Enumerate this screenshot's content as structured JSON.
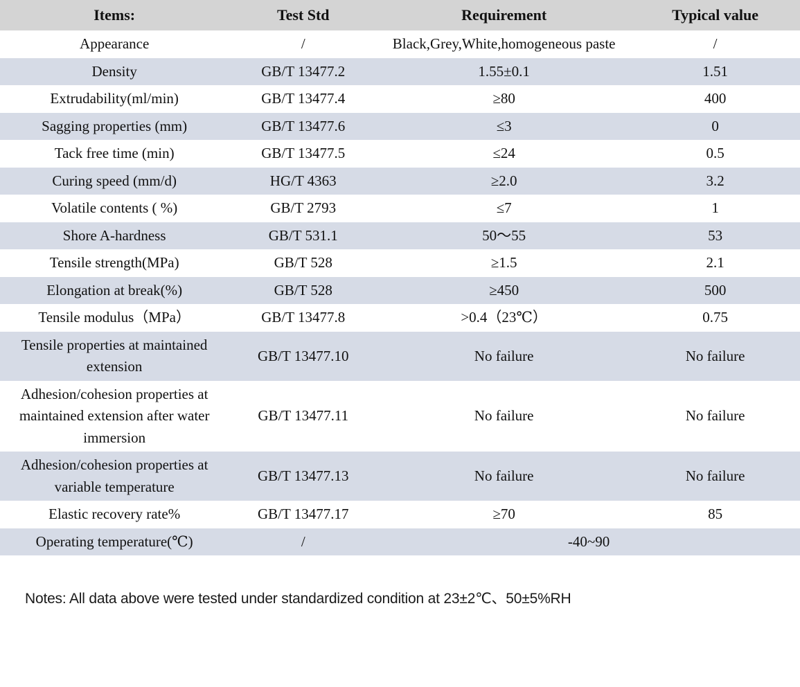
{
  "table": {
    "headers": [
      "Items:",
      "Test Std",
      "Requirement",
      "Typical value"
    ],
    "rows": [
      {
        "item": "Appearance",
        "std": "/",
        "req": "Black,Grey,White,homogeneous paste",
        "typ": "/"
      },
      {
        "item": "Density",
        "std": "GB/T 13477.2",
        "req": "1.55±0.1",
        "typ": "1.51"
      },
      {
        "item": "Extrudability(ml/min)",
        "std": "GB/T 13477.4",
        "req": "≥80",
        "typ": "400"
      },
      {
        "item": "Sagging properties (mm)",
        "std": "GB/T 13477.6",
        "req": "≤3",
        "typ": "0"
      },
      {
        "item": "Tack free time (min)",
        "std": "GB/T 13477.5",
        "req": "≤24",
        "typ": "0.5"
      },
      {
        "item": "Curing speed (mm/d)",
        "std": "HG/T 4363",
        "req": "≥2.0",
        "typ": "3.2"
      },
      {
        "item": "Volatile contents ( %)",
        "std": "GB/T 2793",
        "req": "≤7",
        "typ": "1"
      },
      {
        "item": "Shore A-hardness",
        "std": "GB/T 531.1",
        "req": "50～55",
        "typ": "53"
      },
      {
        "item": "Tensile strength(MPa)",
        "std": "GB/T 528",
        "req": "≥1.5",
        "typ": "2.1"
      },
      {
        "item": "Elongation at break(%)",
        "std": "GB/T 528",
        "req": "≥450",
        "typ": "500"
      },
      {
        "item": "Tensile modulus（MPa）",
        "std": "GB/T 13477.8",
        "req": ">0.4（23℃）",
        "typ": "0.75"
      },
      {
        "item": "Tensile properties at maintained extension",
        "std": "GB/T 13477.10",
        "req": "No failure",
        "typ": "No failure"
      },
      {
        "item": "Adhesion/cohesion properties at maintained extension after water immersion",
        "std": "GB/T 13477.11",
        "req": "No failure",
        "typ": "No failure"
      },
      {
        "item": "Adhesion/cohesion properties at variable temperature",
        "std": "GB/T 13477.13",
        "req": "No failure",
        "typ": "No failure"
      },
      {
        "item": "Elastic recovery rate%",
        "std": "GB/T 13477.17",
        "req": "≥70",
        "typ": "85"
      },
      {
        "item": "Operating temperature(℃)",
        "std": "/",
        "req": "-40~90",
        "typ": null,
        "req_colspan": 2
      }
    ]
  },
  "notes": "Notes: All data above were tested under standardized condition at 23±2℃、50±5%RH",
  "colors": {
    "header_bg": "#d4d4d4",
    "stripe_bg": "#d6dbe6",
    "text": "#111111"
  }
}
